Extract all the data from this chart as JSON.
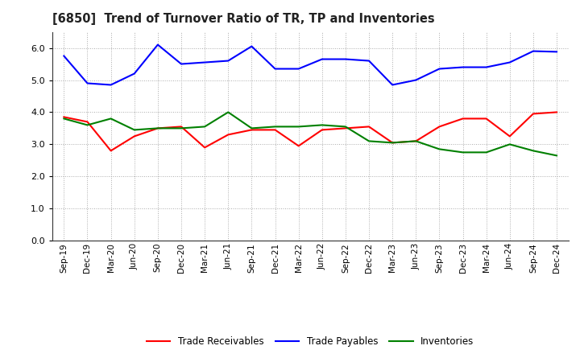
{
  "title": "[6850]  Trend of Turnover Ratio of TR, TP and Inventories",
  "x_labels": [
    "Sep-19",
    "Dec-19",
    "Mar-20",
    "Jun-20",
    "Sep-20",
    "Dec-20",
    "Mar-21",
    "Jun-21",
    "Sep-21",
    "Dec-21",
    "Mar-22",
    "Jun-22",
    "Sep-22",
    "Dec-22",
    "Mar-23",
    "Jun-23",
    "Sep-23",
    "Dec-23",
    "Mar-24",
    "Jun-24",
    "Sep-24",
    "Dec-24"
  ],
  "trade_receivables": [
    3.85,
    3.7,
    2.8,
    3.25,
    3.5,
    3.55,
    2.9,
    3.3,
    3.45,
    3.45,
    2.95,
    3.45,
    3.5,
    3.55,
    3.05,
    3.1,
    3.55,
    3.8,
    3.8,
    3.25,
    3.95,
    4.0
  ],
  "trade_payables": [
    5.75,
    4.9,
    4.85,
    5.2,
    6.1,
    5.5,
    5.55,
    5.6,
    6.05,
    5.35,
    5.35,
    5.65,
    5.65,
    5.6,
    4.85,
    5.0,
    5.35,
    5.4,
    5.4,
    5.55,
    5.9,
    5.88
  ],
  "inventories": [
    3.8,
    3.6,
    3.8,
    3.45,
    3.5,
    3.5,
    3.55,
    4.0,
    3.5,
    3.55,
    3.55,
    3.6,
    3.55,
    3.1,
    3.05,
    3.1,
    2.85,
    2.75,
    2.75,
    3.0,
    2.8,
    2.65
  ],
  "color_tr": "#ff0000",
  "color_tp": "#0000ff",
  "color_inv": "#008000",
  "ylim": [
    0.0,
    6.5
  ],
  "yticks": [
    0.0,
    1.0,
    2.0,
    3.0,
    4.0,
    5.0,
    6.0
  ],
  "legend_labels": [
    "Trade Receivables",
    "Trade Payables",
    "Inventories"
  ],
  "background_color": "#ffffff",
  "linewidth": 1.5
}
